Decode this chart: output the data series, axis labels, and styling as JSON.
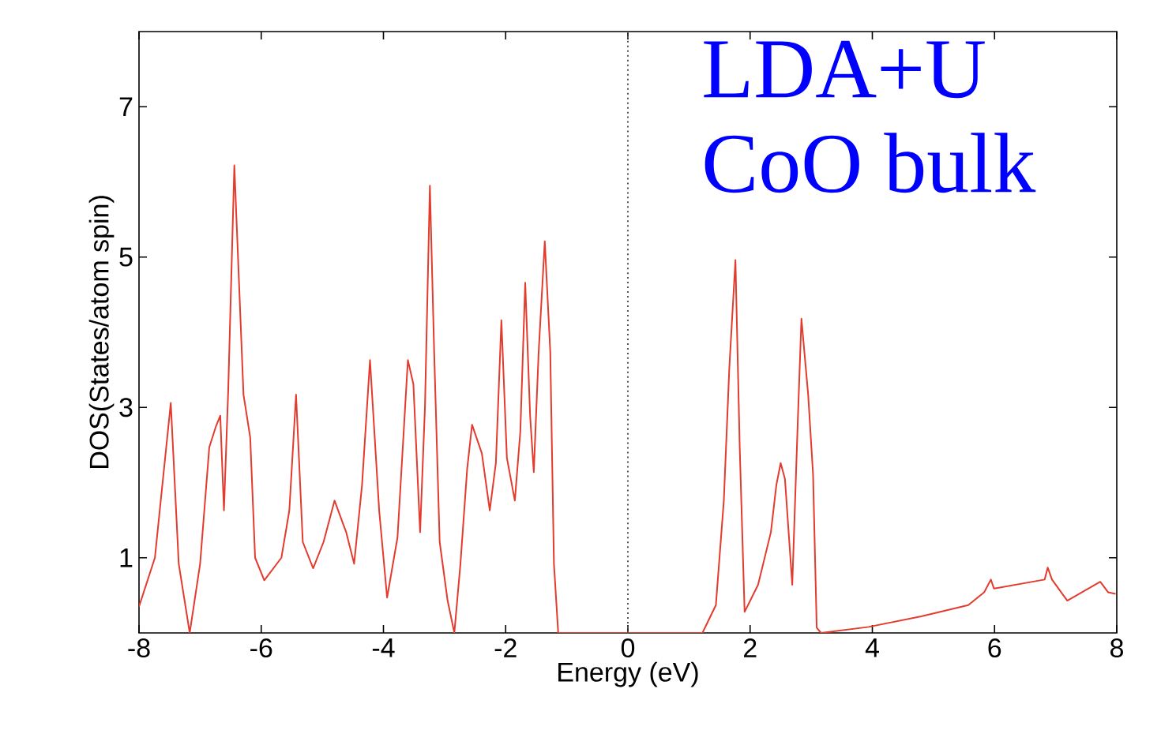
{
  "chart_data": {
    "type": "line",
    "xlabel": "Energy (eV)",
    "ylabel": "DOS(States/atom spin)",
    "annotations": [
      "LDA+U",
      "CoO bulk"
    ],
    "xlim": [
      -8,
      8
    ],
    "xticks": [
      -8,
      -6,
      -4,
      -2,
      0,
      2,
      4,
      6,
      8
    ],
    "ylim": [
      0,
      8
    ],
    "yticks": [
      1,
      3,
      5,
      7
    ],
    "marker": "none",
    "line_style": "solid",
    "ref_lines": [
      {
        "axis": "x",
        "value": 0,
        "color": "#555555",
        "line_style": "dotted"
      }
    ],
    "series": [
      {
        "color": "#e33b2e",
        "x": [
          -8,
          -7.74,
          -7.48,
          -7.35,
          -7.17,
          -7.0,
          -6.85,
          -6.74,
          -6.67,
          -6.61,
          -6.54,
          -6.44,
          -6.29,
          -6.18,
          -6.1,
          -5.95,
          -5.67,
          -5.54,
          -5.43,
          -5.32,
          -5.15,
          -4.98,
          -4.8,
          -4.61,
          -4.48,
          -4.35,
          -4.22,
          -4.07,
          -3.94,
          -3.77,
          -3.6,
          -3.51,
          -3.4,
          -3.32,
          -3.24,
          -3.17,
          -3.08,
          -2.95,
          -2.84,
          -2.74,
          -2.63,
          -2.55,
          -2.39,
          -2.26,
          -2.16,
          -2.07,
          -1.98,
          -1.85,
          -1.76,
          -1.68,
          -1.6,
          -1.54,
          -1.46,
          -1.36,
          -1.27,
          -1.21,
          -1.14,
          1.22,
          1.44,
          1.57,
          1.66,
          1.76,
          1.83,
          1.91,
          2.13,
          2.34,
          2.43,
          2.5,
          2.57,
          2.69,
          2.78,
          2.84,
          2.95,
          3.03,
          3.09,
          3.16,
          3.94,
          4.8,
          5.57,
          5.83,
          5.94,
          5.99,
          6.82,
          6.87,
          6.94,
          7.19,
          7.73,
          7.86,
          7.98
        ],
        "values": [
          0.35,
          1.0,
          3.06,
          0.92,
          0,
          0.92,
          2.47,
          2.75,
          2.89,
          1.63,
          3.23,
          6.22,
          3.17,
          2.6,
          1.0,
          0.7,
          1.0,
          1.63,
          3.17,
          1.21,
          0.86,
          1.21,
          1.76,
          1.34,
          0.92,
          1.97,
          3.63,
          1.63,
          0.47,
          1.27,
          3.63,
          3.31,
          1.34,
          3.02,
          5.95,
          3.74,
          1.21,
          0.43,
          0,
          0.92,
          2.18,
          2.77,
          2.39,
          1.63,
          2.26,
          4.16,
          2.33,
          1.76,
          2.68,
          4.66,
          2.89,
          2.14,
          3.74,
          5.21,
          3.74,
          0.92,
          0,
          0,
          0.37,
          1.76,
          3.53,
          4.96,
          2.47,
          0.28,
          0.64,
          1.34,
          1.97,
          2.26,
          2.05,
          0.64,
          2.81,
          4.18,
          3.17,
          2.11,
          0.07,
          0,
          0.08,
          0.22,
          0.37,
          0.54,
          0.71,
          0.59,
          0.71,
          0.87,
          0.71,
          0.43,
          0.68,
          0.54,
          0.52
        ]
      }
    ]
  }
}
